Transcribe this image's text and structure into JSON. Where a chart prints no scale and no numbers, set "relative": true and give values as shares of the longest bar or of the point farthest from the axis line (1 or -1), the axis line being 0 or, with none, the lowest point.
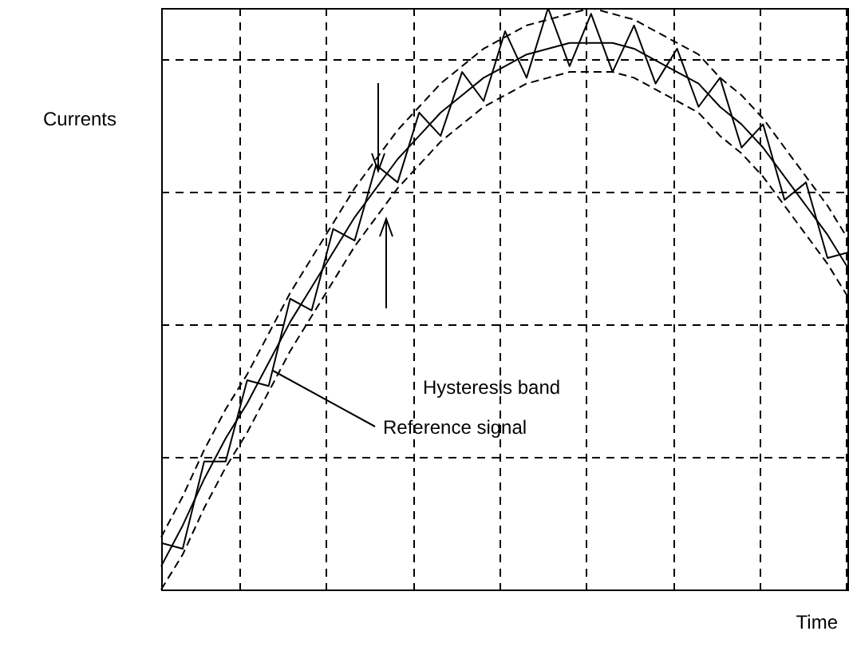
{
  "chart_data": {
    "type": "line",
    "relative": true,
    "ylabel": "Currents",
    "xlabel": "Time",
    "grid": true,
    "legend": false,
    "marker": "none",
    "categories": [
      null,
      null,
      null,
      null,
      null,
      null,
      null,
      null,
      null,
      null,
      null,
      null,
      null,
      null,
      null,
      null,
      null,
      null,
      null,
      null,
      null,
      null,
      null,
      null,
      null,
      null,
      null,
      null,
      null,
      null,
      null,
      null,
      null
    ],
    "series": [
      {
        "color": "#000000",
        "line_style": "solid",
        "values": [
          0.04,
          0.11,
          0.19,
          0.26,
          0.32,
          0.39,
          0.46,
          0.52,
          0.58,
          0.64,
          0.69,
          0.74,
          0.78,
          0.82,
          0.85,
          0.88,
          0.9,
          0.92,
          0.93,
          0.94,
          0.94,
          0.94,
          0.93,
          0.91,
          0.89,
          0.87,
          0.83,
          0.8,
          0.76,
          0.71,
          0.66,
          0.61,
          0.55
        ]
      },
      {
        "color": "#000000",
        "line_style": "dashed",
        "values": [
          0.09,
          0.16,
          0.24,
          0.31,
          0.37,
          0.44,
          0.51,
          0.57,
          0.63,
          0.69,
          0.74,
          0.79,
          0.83,
          0.87,
          0.9,
          0.93,
          0.95,
          0.97,
          0.98,
          0.99,
          1.0,
          0.99,
          0.98,
          0.96,
          0.94,
          0.92,
          0.88,
          0.85,
          0.81,
          0.76,
          0.71,
          0.66,
          0.6
        ]
      },
      {
        "color": "#000000",
        "line_style": "dashed",
        "values": [
          0,
          0.06,
          0.14,
          0.21,
          0.27,
          0.34,
          0.41,
          0.47,
          0.53,
          0.59,
          0.64,
          0.69,
          0.73,
          0.77,
          0.8,
          0.83,
          0.85,
          0.87,
          0.88,
          0.89,
          0.89,
          0.89,
          0.88,
          0.86,
          0.84,
          0.82,
          0.78,
          0.75,
          0.71,
          0.66,
          0.61,
          0.56,
          0.5
        ]
      },
      {
        "color": "#000000",
        "line_style": "solid",
        "values": [
          0.08,
          0.07,
          0.22,
          0.22,
          0.36,
          0.35,
          0.5,
          0.48,
          0.62,
          0.6,
          0.73,
          0.7,
          0.82,
          0.78,
          0.89,
          0.84,
          0.96,
          0.88,
          1.0,
          0.9,
          0.99,
          0.89,
          0.97,
          0.87,
          0.93,
          0.83,
          0.88,
          0.76,
          0.8,
          0.67,
          0.7,
          0.57,
          0.58
        ]
      }
    ],
    "annotations": [
      "Hysteresis band",
      "Reference signal"
    ]
  }
}
